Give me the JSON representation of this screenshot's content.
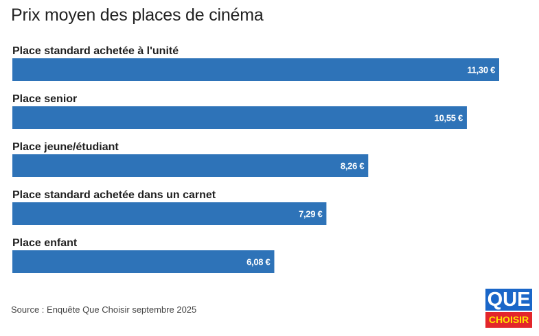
{
  "title": "Prix moyen des places de cinéma",
  "source": "Source : Enquête Que Choisir septembre 2025",
  "logo": {
    "line1": "QUE",
    "line2": "CHOISIR"
  },
  "colors": {
    "bar": "#2e73b8",
    "logo_blue": "#1a66c8",
    "logo_red": "#e3262b",
    "logo_yellow": "#ffe500"
  },
  "chart_data": {
    "type": "bar",
    "orientation": "horizontal",
    "title": "Prix moyen des places de cinéma",
    "categories": [
      "Place standard achetée à l'unité",
      "Place senior",
      "Place jeune/étudiant",
      "Place standard achetée dans un carnet",
      "Place enfant"
    ],
    "values": [
      11.3,
      10.55,
      8.26,
      7.29,
      6.08
    ],
    "value_labels": [
      "11,30 €",
      "10,55 €",
      "8,26 €",
      "7,29 €",
      "6,08 €"
    ],
    "xlim": [
      0,
      11.3
    ],
    "grid": false,
    "legend": "none"
  }
}
